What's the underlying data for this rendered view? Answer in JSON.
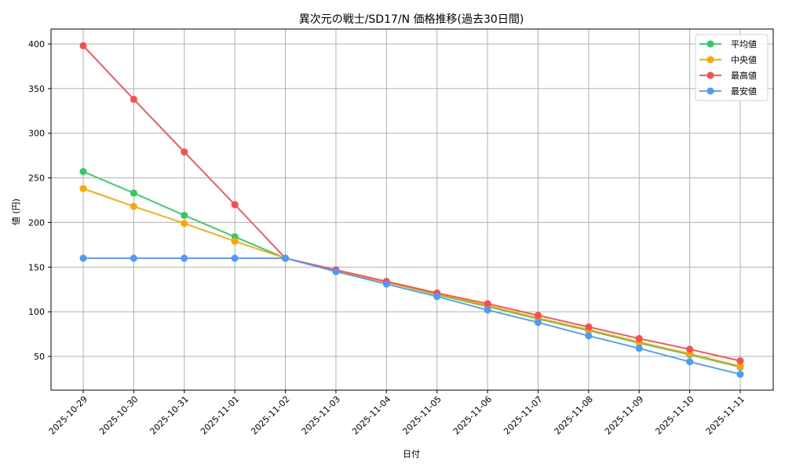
{
  "chart_data": {
    "type": "line",
    "title": "異次元の戦士/SD17/N 価格推移(過去30日間)",
    "xlabel": "日付",
    "ylabel": "値 (円)",
    "ylim": [
      12,
      416
    ],
    "yticks": [
      50,
      100,
      150,
      200,
      250,
      300,
      350,
      400
    ],
    "grid": true,
    "legend_position": "upper right",
    "categories": [
      "2025-10-29",
      "2025-10-30",
      "2025-10-31",
      "2025-11-01",
      "2025-11-02",
      "2025-11-03",
      "2025-11-04",
      "2025-11-05",
      "2025-11-06",
      "2025-11-07",
      "2025-11-08",
      "2025-11-09",
      "2025-11-10",
      "2025-11-11"
    ],
    "series": [
      {
        "name": "平均値",
        "color": "#2ecc5f",
        "values": [
          257,
          233,
          208,
          184,
          160,
          146,
          133,
          119,
          106,
          92,
          79,
          65,
          52,
          38
        ]
      },
      {
        "name": "中央値",
        "color": "#ffa500",
        "values": [
          238,
          218,
          199,
          179,
          160,
          146,
          133,
          120,
          107,
          93,
          80,
          66,
          53,
          39
        ]
      },
      {
        "name": "最高値",
        "color": "#ff4b4b",
        "values": [
          398,
          338,
          279,
          220,
          160,
          147,
          134,
          121,
          109,
          96,
          83,
          70,
          58,
          45
        ]
      },
      {
        "name": "最安値",
        "color": "#4b9bff",
        "values": [
          160,
          160,
          160,
          160,
          160,
          145,
          131,
          117,
          102,
          88,
          73,
          59,
          44,
          30
        ]
      }
    ]
  }
}
